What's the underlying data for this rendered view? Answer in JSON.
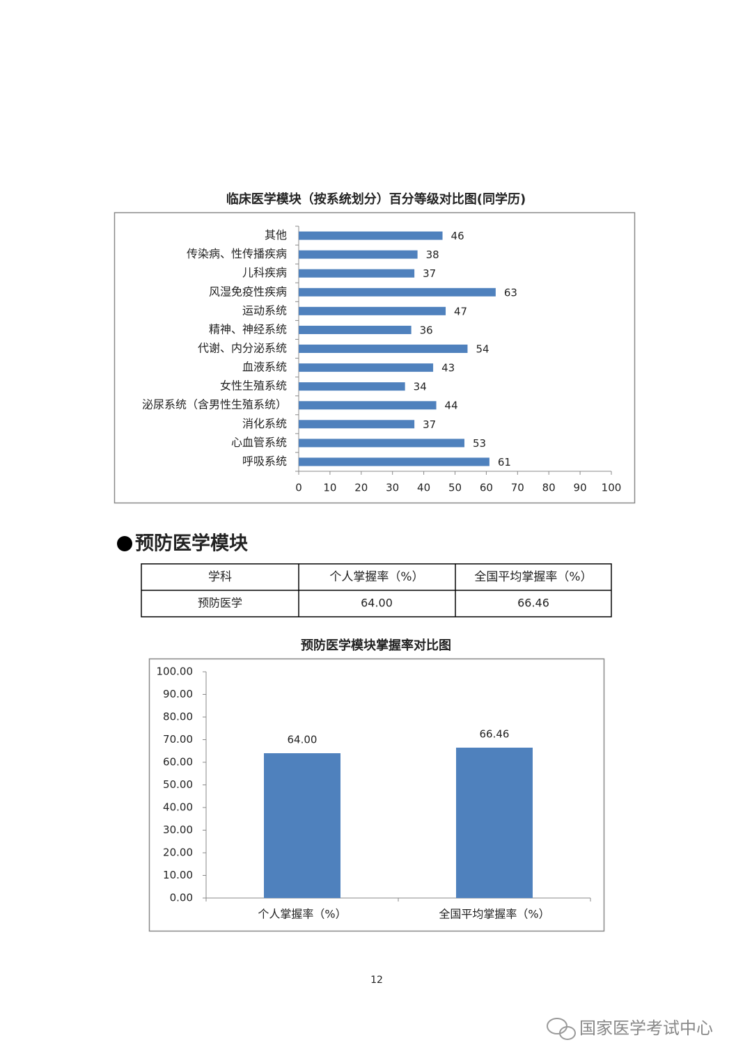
{
  "chart_data": [
    {
      "type": "bar",
      "horizontal": true,
      "title": "临床医学模块（按系统划分）百分等级对比图(同学历)",
      "categories": [
        "其他",
        "传染病、性传播疾病",
        "儿科疾病",
        "风湿免疫性疾病",
        "运动系统",
        "精神、神经系统",
        "代谢、内分泌系统",
        "血液系统",
        "女性生殖系统",
        "泌尿系统（含男性生殖系统）",
        "消化系统",
        "心血管系统",
        "呼吸系统"
      ],
      "values": [
        46,
        38,
        37,
        63,
        47,
        36,
        54,
        43,
        34,
        44,
        37,
        53,
        61
      ],
      "color": "#4f81bd",
      "xlim": [
        0,
        100
      ],
      "xticks": [
        0,
        10,
        20,
        30,
        40,
        50,
        60,
        70,
        80,
        90,
        100
      ]
    },
    {
      "type": "bar",
      "horizontal": false,
      "title": "预防医学模块掌握率对比图",
      "categories": [
        "个人掌握率（%）",
        "全国平均掌握率（%）"
      ],
      "values": [
        64.0,
        66.46
      ],
      "value_labels": [
        "64.00",
        "66.46"
      ],
      "color": "#4f81bd",
      "ylim": [
        0,
        100
      ],
      "yticks": [
        {
          "value": 0,
          "label": "0.00"
        },
        {
          "value": 10,
          "label": "10.00"
        },
        {
          "value": 20,
          "label": "20.00"
        },
        {
          "value": 30,
          "label": "30.00"
        },
        {
          "value": 40,
          "label": "40.00"
        },
        {
          "value": 50,
          "label": "50.00"
        },
        {
          "value": 60,
          "label": "60.00"
        },
        {
          "value": 70,
          "label": "70.00"
        },
        {
          "value": 80,
          "label": "80.00"
        },
        {
          "value": 90,
          "label": "90.00"
        },
        {
          "value": 100,
          "label": "100.00"
        }
      ]
    }
  ],
  "section": {
    "heading": "预防医学模块"
  },
  "table": {
    "header": [
      "学科",
      "个人掌握率（%）",
      "全国平均掌握率（%）"
    ],
    "rows": [
      [
        "预防医学",
        "64.00",
        "66.46"
      ]
    ]
  },
  "page_number": "12",
  "watermark": "国家医学考试中心"
}
